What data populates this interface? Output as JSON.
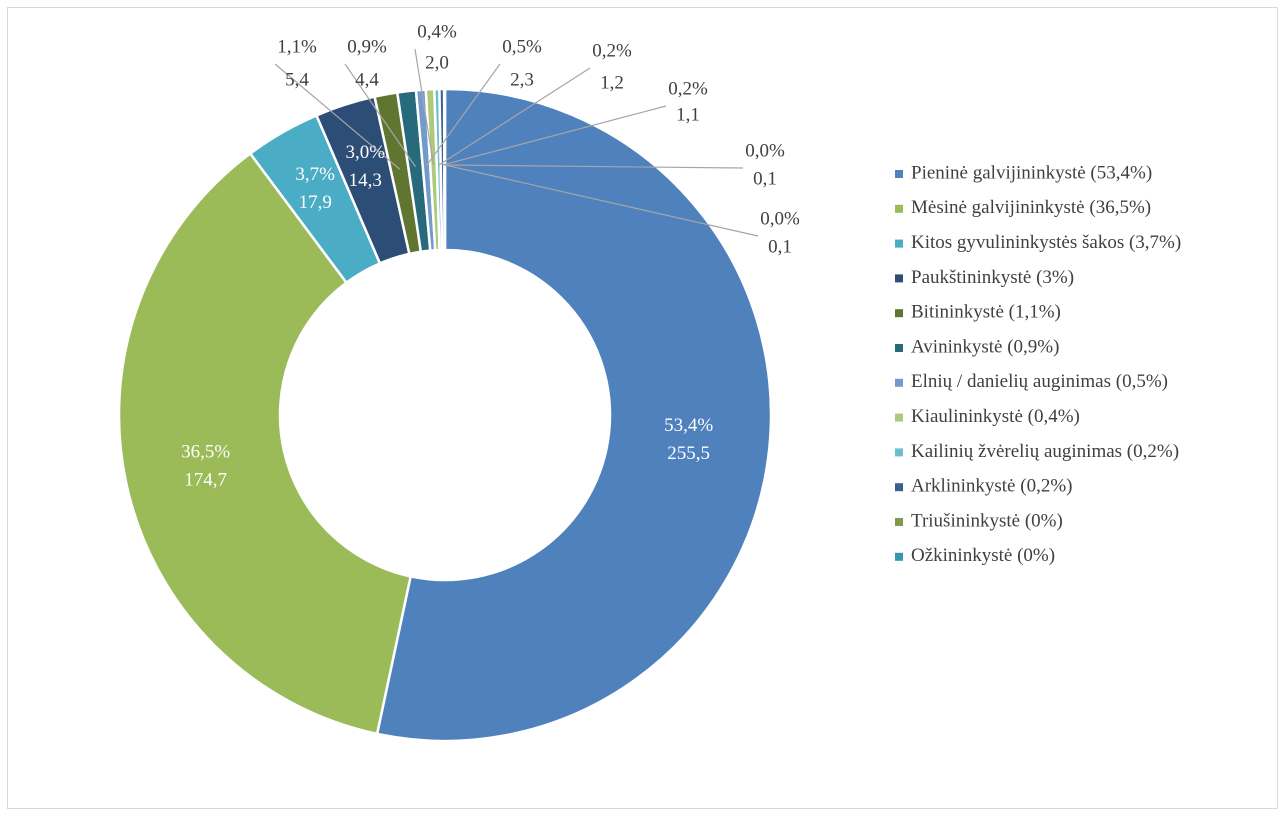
{
  "chart_data": {
    "type": "donut",
    "categories": [
      "Pieninė galvijininkystė (53,4%)",
      "Mėsinė galvijininkystė (36,5%)",
      "Kitos gyvulininkystės šakos (3,7%)",
      "Paukštininkystė (3%)",
      "Bitininkystė (1,1%)",
      "Avininkystė (0,9%)",
      "Elnių / danielių auginimas (0,5%)",
      "Kiaulininkystė (0,4%)",
      "Kailinių žvėrelių auginimas (0,2%)",
      "Arklininkystė (0,2%)",
      "Triušininkystė (0%)",
      "Ožkininkystė (0%)"
    ],
    "values": [
      255.5,
      174.7,
      17.9,
      14.3,
      5.4,
      4.4,
      2.3,
      2.0,
      1.2,
      1.1,
      0.1,
      0.1
    ],
    "value_labels": [
      "255,5",
      "174,7",
      "17,9",
      "14,3",
      "5,4",
      "4,4",
      "2,3",
      "2,0",
      "1,2",
      "1,1",
      "0,1",
      "0,1"
    ],
    "percent_labels": [
      "53,4%",
      "36,5%",
      "3,7%",
      "3,0%",
      "1,1%",
      "0,9%",
      "0,5%",
      "0,4%",
      "0,2%",
      "0,2%",
      "0,0%",
      "0,0%"
    ],
    "colors": [
      "#4f81bd",
      "#9bbb59",
      "#4bacc6",
      "#2c4d75",
      "#5f7530",
      "#276a7c",
      "#729aca",
      "#afc97a",
      "#6fbdd3",
      "#3a5f8e",
      "#7f9a48",
      "#3896b0"
    ],
    "legend": "right"
  }
}
